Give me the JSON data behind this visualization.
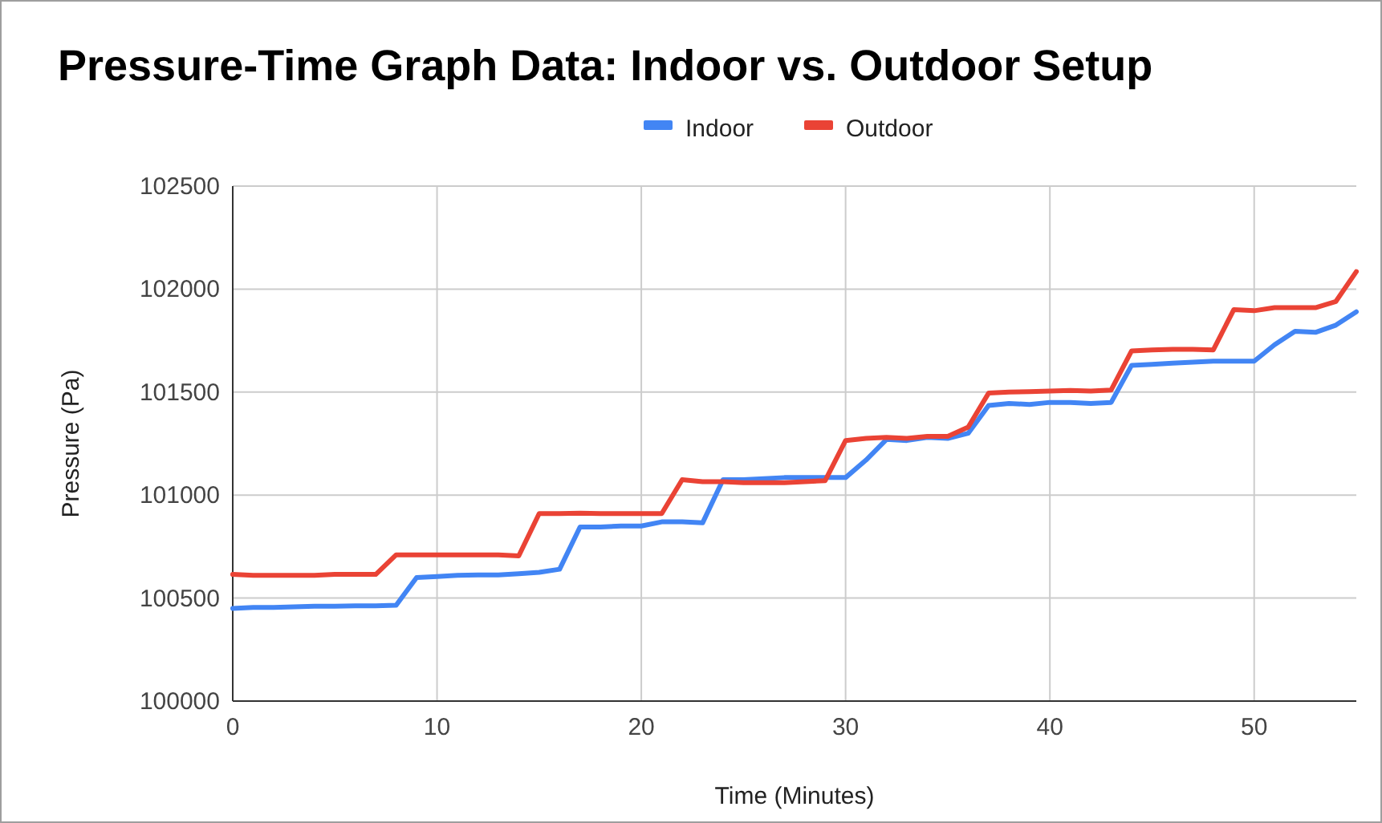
{
  "chart_data": {
    "type": "line",
    "title": "Pressure-Time Graph Data: Indoor vs. Outdoor Setup",
    "xlabel": "Time (Minutes)",
    "ylabel": "Pressure (Pa)",
    "x": [
      0,
      1,
      2,
      3,
      4,
      5,
      6,
      7,
      8,
      9,
      10,
      11,
      12,
      13,
      14,
      15,
      16,
      17,
      18,
      19,
      20,
      21,
      22,
      23,
      24,
      25,
      26,
      27,
      28,
      29,
      30,
      31,
      32,
      33,
      34,
      35,
      36,
      37,
      38,
      39,
      40,
      41,
      42,
      43,
      44,
      45,
      46,
      47,
      48,
      49,
      50,
      51,
      52,
      53,
      54,
      55
    ],
    "series": [
      {
        "name": "Indoor",
        "color": "#4285f4",
        "values": [
          100450,
          100455,
          100455,
          100458,
          100460,
          100460,
          100462,
          100462,
          100465,
          100600,
          100605,
          100610,
          100612,
          100612,
          100618,
          100625,
          100640,
          100845,
          100845,
          100850,
          100850,
          100870,
          100870,
          100865,
          101075,
          101075,
          101080,
          101085,
          101085,
          101085,
          101085,
          101170,
          101270,
          101265,
          101280,
          101275,
          101300,
          101435,
          101445,
          101440,
          101450,
          101450,
          101445,
          101450,
          101630,
          101635,
          101640,
          101645,
          101650,
          101650,
          101650,
          101730,
          101795,
          101790,
          101825,
          101890
        ]
      },
      {
        "name": "Outdoor",
        "color": "#ea4335",
        "values": [
          100615,
          100610,
          100610,
          100610,
          100610,
          100615,
          100615,
          100615,
          100710,
          100710,
          100710,
          100710,
          100710,
          100710,
          100705,
          100910,
          100910,
          100912,
          100910,
          100910,
          100910,
          100910,
          101075,
          101065,
          101065,
          101060,
          101060,
          101060,
          101065,
          101070,
          101265,
          101275,
          101280,
          101275,
          101285,
          101285,
          101330,
          101495,
          101500,
          101502,
          101505,
          101508,
          101505,
          101510,
          101700,
          101705,
          101708,
          101708,
          101705,
          101900,
          101895,
          101910,
          101910,
          101910,
          101940,
          102085
        ]
      }
    ],
    "xlim": [
      0,
      55
    ],
    "xticks": [
      0,
      10,
      20,
      30,
      40,
      50
    ],
    "ylim": [
      100000,
      102500
    ],
    "yticks": [
      100000,
      100500,
      101000,
      101500,
      102000,
      102500
    ],
    "grid": true,
    "legend": "top",
    "marker": "none",
    "line_style": "solid"
  }
}
